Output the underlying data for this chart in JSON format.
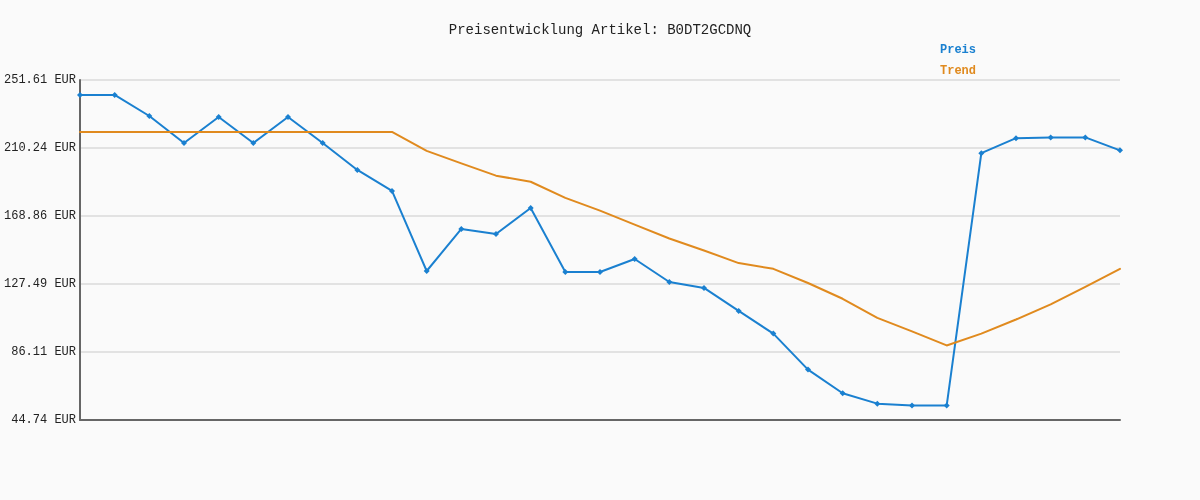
{
  "chart_data": {
    "type": "line",
    "title": "Preisentwicklung Artikel: B0DT2GCDNQ",
    "categories": [
      null,
      null,
      null,
      null,
      null,
      null,
      null,
      null,
      null,
      null,
      null,
      null,
      null,
      null,
      null,
      null,
      null,
      null,
      null,
      null,
      null,
      null,
      null,
      null,
      null,
      null,
      null,
      null,
      null,
      null,
      null
    ],
    "series": [
      {
        "name": "Preis",
        "color": "#1a80d0",
        "marker": "diamond",
        "values": [
          242.5,
          242.5,
          229.7,
          213.3,
          229.1,
          213.3,
          229.1,
          213.3,
          196.9,
          184.1,
          135.4,
          161.0,
          157.9,
          173.7,
          134.8,
          134.8,
          142.7,
          128.7,
          125.1,
          111.1,
          97.3,
          75.4,
          61.0,
          54.7,
          53.5,
          53.5,
          207.1,
          216.2,
          216.7,
          216.7,
          208.8
        ]
      },
      {
        "name": "Trend",
        "color": "#e08a1e",
        "marker": "none",
        "values": [
          220.0,
          220.0,
          220.0,
          220.0,
          220.0,
          220.0,
          220.0,
          220.0,
          220.0,
          220.0,
          208.5,
          200.9,
          193.4,
          189.7,
          179.9,
          172.1,
          163.6,
          155.2,
          147.9,
          140.2,
          136.7,
          128.1,
          118.5,
          106.9,
          98.7,
          90.1,
          97.3,
          105.9,
          115.1,
          125.8,
          136.7
        ]
      }
    ],
    "ylim": [
      44.74,
      251.61
    ],
    "yticks": [
      {
        "value": 44.74,
        "label": "44.74 EUR"
      },
      {
        "value": 86.11,
        "label": "86.11 EUR"
      },
      {
        "value": 127.49,
        "label": "127.49 EUR"
      },
      {
        "value": 168.86,
        "label": "168.86 EUR"
      },
      {
        "value": 210.24,
        "label": "210.24 EUR"
      },
      {
        "value": 251.61,
        "label": "251.61 EUR"
      }
    ],
    "grid": "y",
    "legend": "top right",
    "tick_labels": "y",
    "line_style": "solid"
  }
}
